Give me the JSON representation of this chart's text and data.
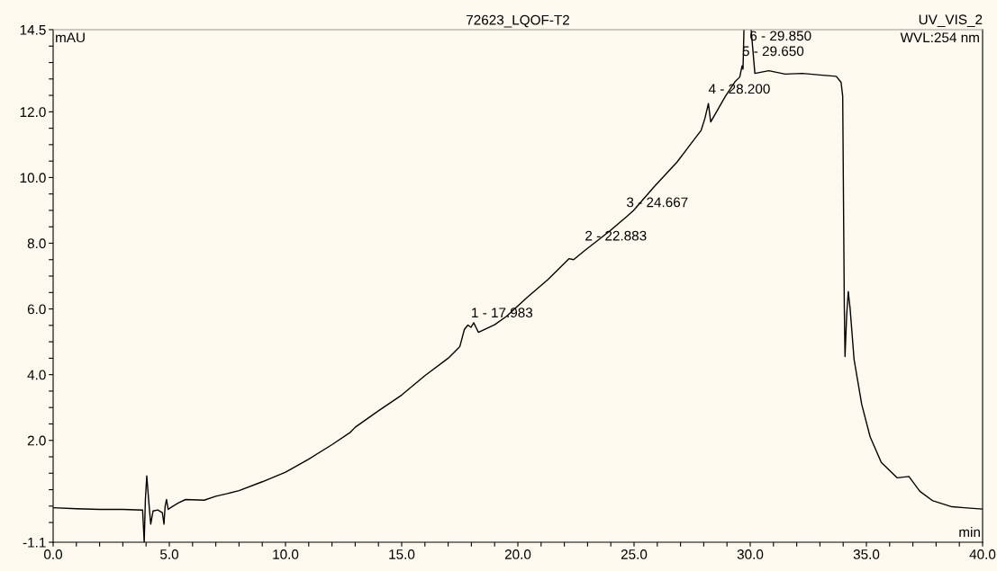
{
  "chart_data": {
    "type": "line",
    "title": "72623_LQOF-T2",
    "xlabel": "min",
    "ylabel": "mAU",
    "series": [
      {
        "color": "#000000",
        "x": [
          0,
          1,
          2,
          3,
          3.85,
          3.92,
          3.97,
          4.03,
          4.12,
          4.2,
          4.3,
          4.5,
          4.7,
          4.77,
          4.82,
          4.88,
          4.95,
          5.05,
          5.4,
          5.7,
          6.5,
          7.0,
          7.5,
          8.0,
          9.0,
          10.0,
          11.0,
          12.0,
          12.8,
          13.0,
          14.0,
          15.0,
          16.0,
          17.0,
          17.5,
          17.7,
          17.85,
          17.983,
          18.1,
          18.3,
          19.0,
          19.5,
          20.41,
          21.3,
          22.2,
          22.4,
          22.883,
          23.95,
          24.667,
          24.98,
          25.88,
          26.85,
          27.89,
          28.05,
          28.2,
          28.3,
          28.93,
          29.34,
          29.55,
          29.65,
          29.69,
          29.73,
          29.85,
          30.04,
          30.2,
          30.8,
          31.5,
          32.25,
          33.0,
          33.7,
          33.91,
          33.98,
          34.05,
          34.08,
          34.15,
          34.22,
          34.3,
          34.47,
          34.8,
          35.16,
          35.64,
          36.33,
          36.83,
          37.3,
          37.86,
          38.68,
          39.2,
          40
        ],
        "values": [
          -0.05,
          -0.08,
          -0.1,
          -0.1,
          -0.12,
          -1.1,
          0.2,
          0.92,
          0.1,
          -0.55,
          -0.15,
          -0.12,
          -0.2,
          -0.55,
          0.0,
          0.2,
          -0.1,
          -0.05,
          0.1,
          0.2,
          0.18,
          0.3,
          0.38,
          0.47,
          0.74,
          1.03,
          1.43,
          1.87,
          2.25,
          2.4,
          2.9,
          3.38,
          3.97,
          4.5,
          4.85,
          5.38,
          5.51,
          5.44,
          5.58,
          5.29,
          5.52,
          5.77,
          6.36,
          6.9,
          7.53,
          7.5,
          7.78,
          8.37,
          8.8,
          9.0,
          9.73,
          10.47,
          11.44,
          11.8,
          12.25,
          11.69,
          12.47,
          12.91,
          13.06,
          13.4,
          13.3,
          14.5,
          null,
          14.5,
          13.17,
          13.25,
          13.15,
          13.17,
          13.12,
          13.08,
          12.9,
          12.47,
          6.0,
          4.55,
          5.8,
          6.53,
          6.0,
          4.46,
          3.09,
          2.11,
          1.33,
          0.86,
          0.9,
          0.45,
          0.16,
          -0.02,
          -0.05,
          -0.09
        ]
      }
    ],
    "annotations": [
      "UV_VIS_2",
      "WVL:254 nm",
      {
        "text": "1 - 17.983",
        "x": 17.983,
        "y": 5.44
      },
      {
        "text": "2 - 22.883",
        "x": 22.883,
        "y": 7.78
      },
      {
        "text": "3 - 24.667",
        "x": 24.667,
        "y": 8.8
      },
      {
        "text": "4 - 28.200",
        "x": 28.2,
        "y": 12.25
      },
      {
        "text": "5 - 29.650",
        "x": 29.65,
        "y": 13.4
      },
      "6 - 29.850"
    ],
    "xlim": [
      0,
      40
    ],
    "ylim": [
      -1.1,
      14.5
    ],
    "xticks": [
      {
        "value": 0,
        "label": "0.0"
      },
      {
        "value": 1,
        "label": null
      },
      {
        "value": 2,
        "label": null
      },
      {
        "value": 3,
        "label": null
      },
      {
        "value": 4,
        "label": null
      },
      {
        "value": 5,
        "label": "5.0"
      },
      {
        "value": 6,
        "label": null
      },
      {
        "value": 7,
        "label": null
      },
      {
        "value": 8,
        "label": null
      },
      {
        "value": 9,
        "label": null
      },
      {
        "value": 10,
        "label": "10.0"
      },
      {
        "value": 11,
        "label": null
      },
      {
        "value": 12,
        "label": null
      },
      {
        "value": 13,
        "label": null
      },
      {
        "value": 14,
        "label": null
      },
      {
        "value": 15,
        "label": "15.0"
      },
      {
        "value": 16,
        "label": null
      },
      {
        "value": 17,
        "label": null
      },
      {
        "value": 18,
        "label": null
      },
      {
        "value": 19,
        "label": null
      },
      {
        "value": 20,
        "label": "20.0"
      },
      {
        "value": 21,
        "label": null
      },
      {
        "value": 22,
        "label": null
      },
      {
        "value": 23,
        "label": null
      },
      {
        "value": 24,
        "label": null
      },
      {
        "value": 25,
        "label": "25.0"
      },
      {
        "value": 26,
        "label": null
      },
      {
        "value": 27,
        "label": null
      },
      {
        "value": 28,
        "label": null
      },
      {
        "value": 29,
        "label": null
      },
      {
        "value": 30,
        "label": "30.0"
      },
      {
        "value": 31,
        "label": null
      },
      {
        "value": 32,
        "label": null
      },
      {
        "value": 33,
        "label": null
      },
      {
        "value": 34,
        "label": null
      },
      {
        "value": 35,
        "label": "35.0"
      },
      {
        "value": 36,
        "label": null
      },
      {
        "value": 37,
        "label": null
      },
      {
        "value": 38,
        "label": null
      },
      {
        "value": 39,
        "label": null
      },
      {
        "value": 40,
        "label": "40.0"
      }
    ],
    "yticks": [
      {
        "value": -1.1,
        "label": "-1.1"
      },
      {
        "value": -0.5,
        "label": null
      },
      {
        "value": 0,
        "label": null
      },
      {
        "value": 0.5,
        "label": null
      },
      {
        "value": 1,
        "label": null
      },
      {
        "value": 1.5,
        "label": null
      },
      {
        "value": 2,
        "label": "2.0"
      },
      {
        "value": 2.5,
        "label": null
      },
      {
        "value": 3,
        "label": null
      },
      {
        "value": 3.5,
        "label": null
      },
      {
        "value": 4,
        "label": "4.0"
      },
      {
        "value": 4.5,
        "label": null
      },
      {
        "value": 5,
        "label": null
      },
      {
        "value": 5.5,
        "label": null
      },
      {
        "value": 6,
        "label": "6.0"
      },
      {
        "value": 6.5,
        "label": null
      },
      {
        "value": 7,
        "label": null
      },
      {
        "value": 7.5,
        "label": null
      },
      {
        "value": 8,
        "label": "8.0"
      },
      {
        "value": 8.5,
        "label": null
      },
      {
        "value": 9,
        "label": null
      },
      {
        "value": 9.5,
        "label": null
      },
      {
        "value": 10,
        "label": "10.0"
      },
      {
        "value": 10.5,
        "label": null
      },
      {
        "value": 11,
        "label": null
      },
      {
        "value": 11.5,
        "label": null
      },
      {
        "value": 12,
        "label": "12.0"
      },
      {
        "value": 12.5,
        "label": null
      },
      {
        "value": 13,
        "label": null
      },
      {
        "value": 13.5,
        "label": null
      },
      {
        "value": 14,
        "label": null
      },
      {
        "value": 14.5,
        "label": "14.5"
      }
    ],
    "grid": false,
    "legend": false,
    "marker": "none",
    "line_style": "solid"
  }
}
